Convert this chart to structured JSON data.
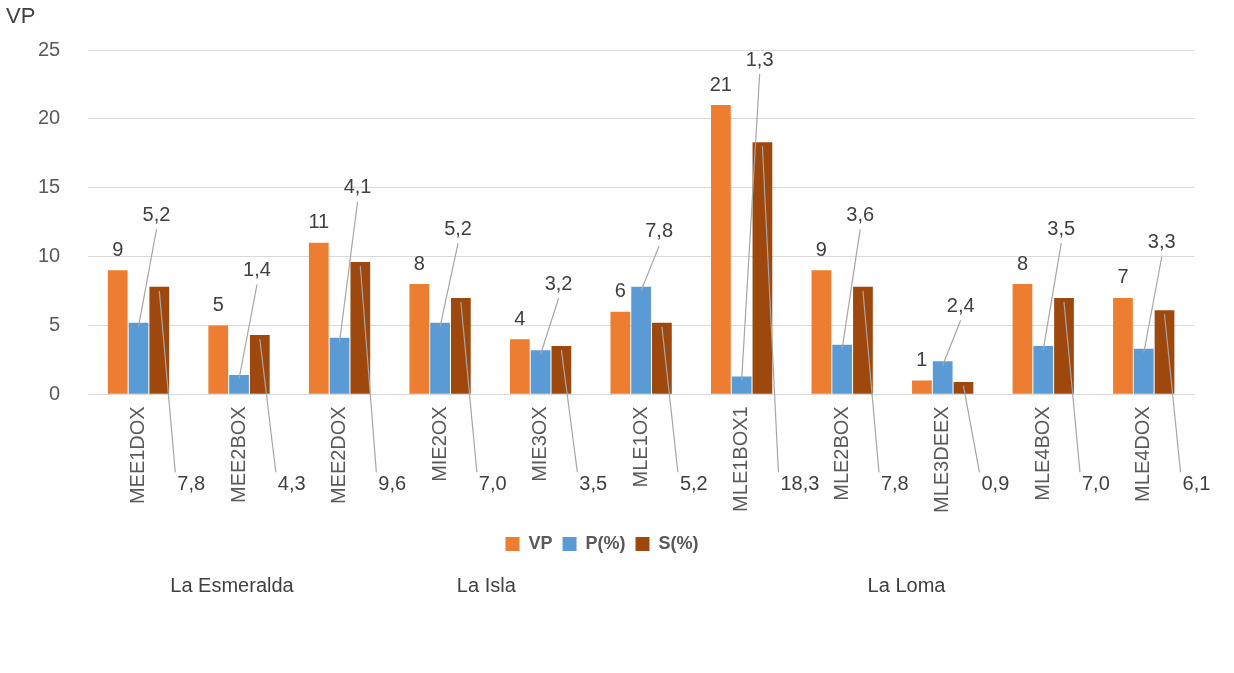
{
  "chart_data": {
    "type": "bar",
    "ylabel": "VP",
    "categories": [
      "MEE1DOX",
      "MEE2BOX",
      "MEE2DOX",
      "MIE2OX",
      "MIE3OX",
      "MLE1OX",
      "MLE1BOX1",
      "MLE2BOX",
      "MLE3DEEX",
      "MLE4BOX",
      "MLE4DOX"
    ],
    "series": [
      {
        "name": "VP",
        "color": "#ed7d31",
        "values": [
          9,
          5,
          11,
          8,
          4,
          6,
          21,
          9,
          1,
          8,
          7
        ],
        "value_labels": [
          "9",
          "5",
          "11",
          "8",
          "4",
          "6",
          "21",
          "9",
          "1",
          "8",
          "7"
        ]
      },
      {
        "name": "P(%)",
        "color": "#5b9bd5",
        "values": [
          5.2,
          1.4,
          4.1,
          5.2,
          3.2,
          7.8,
          1.3,
          3.6,
          2.4,
          3.5,
          3.3
        ],
        "value_labels": [
          "5,2",
          "1,4",
          "4,1",
          "5,2",
          "3,2",
          "7,8",
          "1,3",
          "3,6",
          "2,4",
          "3,5",
          "3,3"
        ]
      },
      {
        "name": "S(%)",
        "color": "#9e480e",
        "values": [
          7.8,
          4.3,
          9.6,
          7.0,
          3.5,
          5.2,
          18.3,
          7.8,
          0.9,
          7.0,
          6.1
        ],
        "value_labels": [
          "7,8",
          "4,3",
          "9,6",
          "7,0",
          "3,5",
          "5,2",
          "18,3",
          "7,8",
          "0,9",
          "7,0",
          "6,1"
        ]
      }
    ],
    "ylim": [
      0,
      25
    ],
    "yticks": [
      0,
      5,
      10,
      15,
      20,
      25
    ],
    "grid": "y",
    "legend": "bottom",
    "annotations": [
      "La Esmeralda",
      "La Isla",
      "La Loma"
    ]
  }
}
